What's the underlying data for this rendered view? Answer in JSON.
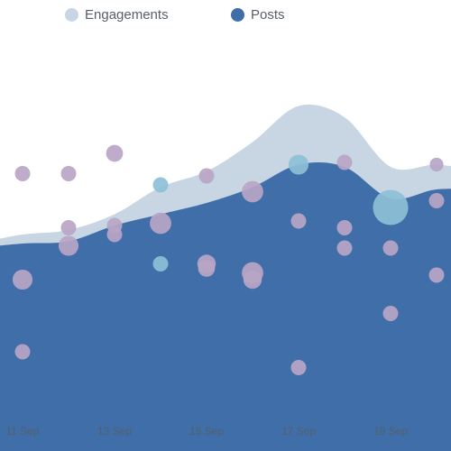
{
  "chart_data": {
    "type": "area",
    "legend": {
      "placement": "top",
      "items": [
        {
          "label": "Engagements",
          "color": "#c8d6e3"
        },
        {
          "label": "Posts",
          "color": "#3f6ea9"
        }
      ]
    },
    "x_ticks": [
      "11 Sep",
      "13 Sep",
      "15 Sep",
      "17 Sep",
      "19 Sep"
    ],
    "x": [
      "10 Sep",
      "11 Sep",
      "12 Sep",
      "13 Sep",
      "14 Sep",
      "15 Sep",
      "16 Sep",
      "17 Sep",
      "18 Sep",
      "19 Sep",
      "20 Sep",
      "21 Sep"
    ],
    "series": [
      {
        "name": "Engagements",
        "color": "#c8d6e3",
        "values": [
          72,
          76,
          78,
          85,
          97,
          104,
          117,
          133,
          128,
          106,
          107,
          104
        ]
      },
      {
        "name": "Posts",
        "color": "#3f6ea9",
        "values": [
          70,
          72,
          73,
          80,
          85,
          90,
          97,
          107,
          106,
          92,
          96,
          96
        ]
      }
    ],
    "grid": false,
    "bubbles": [
      {
        "x": "11 Sep",
        "y": 103,
        "size": 1,
        "color": "#b8a5c6"
      },
      {
        "x": "11 Sep",
        "y": 56,
        "size": 1.3,
        "color": "#b8a5c6"
      },
      {
        "x": "11 Sep",
        "y": 24,
        "size": 1,
        "color": "#b8a5c6"
      },
      {
        "x": "12 Sep",
        "y": 103,
        "size": 1,
        "color": "#b8a5c6"
      },
      {
        "x": "12 Sep",
        "y": 79,
        "size": 1,
        "color": "#b8a5c6"
      },
      {
        "x": "12 Sep",
        "y": 71,
        "size": 1.3,
        "color": "#b8a5c6"
      },
      {
        "x": "13 Sep",
        "y": 112,
        "size": 1.1,
        "color": "#b8a5c6"
      },
      {
        "x": "13 Sep",
        "y": 80,
        "size": 1,
        "color": "#b8a5c6"
      },
      {
        "x": "13 Sep",
        "y": 76,
        "size": 1,
        "color": "#b8a5c6"
      },
      {
        "x": "14 Sep",
        "y": 98,
        "size": 1,
        "color": "#8dc0d6"
      },
      {
        "x": "14 Sep",
        "y": 81,
        "size": 1.4,
        "color": "#b8a5c6"
      },
      {
        "x": "14 Sep",
        "y": 63,
        "size": 1,
        "color": "#8dc0d6"
      },
      {
        "x": "15 Sep",
        "y": 102,
        "size": 1,
        "color": "#b8a5c6"
      },
      {
        "x": "15 Sep",
        "y": 63,
        "size": 1.2,
        "color": "#b8a5c6"
      },
      {
        "x": "15 Sep",
        "y": 61,
        "size": 1.1,
        "color": "#b8a5c6"
      },
      {
        "x": "16 Sep",
        "y": 95,
        "size": 1.4,
        "color": "#b8a5c6"
      },
      {
        "x": "16 Sep",
        "y": 59,
        "size": 1.4,
        "color": "#b8a5c6"
      },
      {
        "x": "16 Sep",
        "y": 56,
        "size": 1.2,
        "color": "#b8a5c6"
      },
      {
        "x": "17 Sep",
        "y": 107,
        "size": 1.3,
        "color": "#8dc0d6"
      },
      {
        "x": "17 Sep",
        "y": 82,
        "size": 1,
        "color": "#b8a5c6"
      },
      {
        "x": "17 Sep",
        "y": 17,
        "size": 1,
        "color": "#b8a5c6"
      },
      {
        "x": "18 Sep",
        "y": 108,
        "size": 1,
        "color": "#b8a5c6"
      },
      {
        "x": "18 Sep",
        "y": 79,
        "size": 1,
        "color": "#b8a5c6"
      },
      {
        "x": "18 Sep",
        "y": 70,
        "size": 1,
        "color": "#b8a5c6"
      },
      {
        "x": "19 Sep",
        "y": 88,
        "size": 2.3,
        "color": "#8dc0d6"
      },
      {
        "x": "19 Sep",
        "y": 70,
        "size": 1,
        "color": "#b8a5c6"
      },
      {
        "x": "19 Sep",
        "y": 41,
        "size": 1,
        "color": "#b8a5c6"
      },
      {
        "x": "20 Sep",
        "y": 107,
        "size": 0.9,
        "color": "#b8a5c6"
      },
      {
        "x": "20 Sep",
        "y": 91,
        "size": 1,
        "color": "#b8a5c6"
      },
      {
        "x": "20 Sep",
        "y": 58,
        "size": 1,
        "color": "#b8a5c6"
      }
    ]
  }
}
